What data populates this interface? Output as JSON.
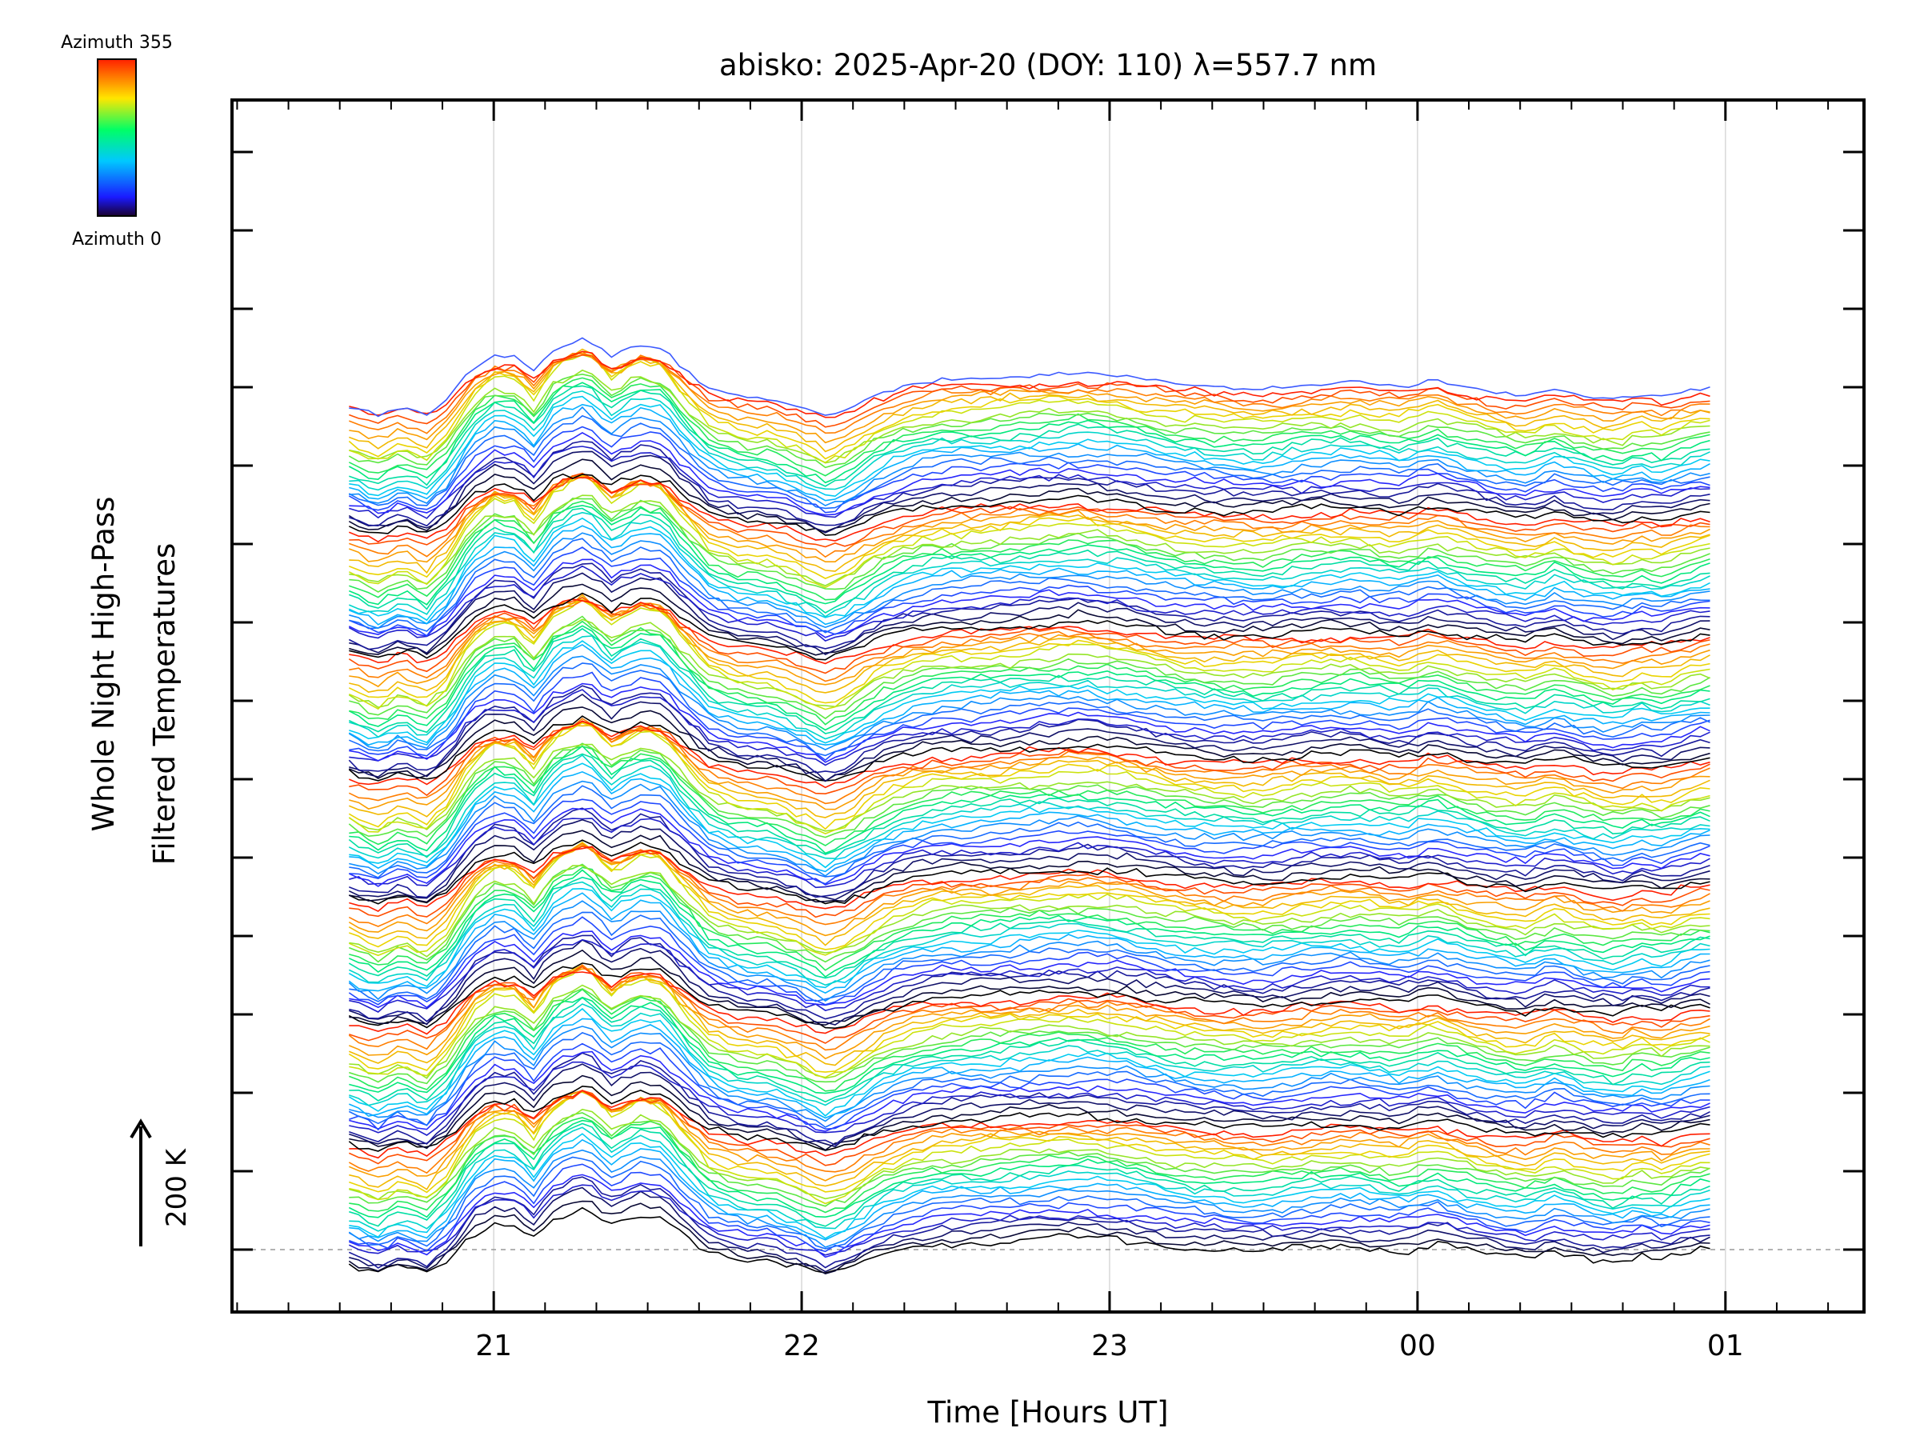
{
  "chart_data": {
    "type": "line",
    "title": "abisko: 2025-Apr-20 (DOY: 110) λ=557.7 nm",
    "xlabel": "Time [Hours UT]",
    "ylabel_lines": [
      "Whole Night High-Pass",
      "Filtered Temperatures"
    ],
    "x_ticks": [
      "21",
      "22",
      "23",
      "00",
      "01"
    ],
    "x_range_hours": [
      20.15,
      25.45
    ],
    "data_x_range_hours": [
      20.53,
      24.95
    ],
    "scale_bar": {
      "label": "200 K",
      "kelvin": 200
    },
    "colorbar": {
      "top_label": "Azimuth 355",
      "bottom_label": "Azimuth 0",
      "azimuth_min": 0,
      "azimuth_max": 355
    },
    "grid": true,
    "n_groups": 7,
    "lines_per_group": 24,
    "azimuth_step_deg": 15,
    "stacking": "each azimuth trace vertically offset upward; colour follows azimuth (rainbow)",
    "colors": [
      "#000000",
      "#1a1aff",
      "#00c8ff",
      "#00ff66",
      "#ffe600",
      "#ff2000"
    ]
  }
}
